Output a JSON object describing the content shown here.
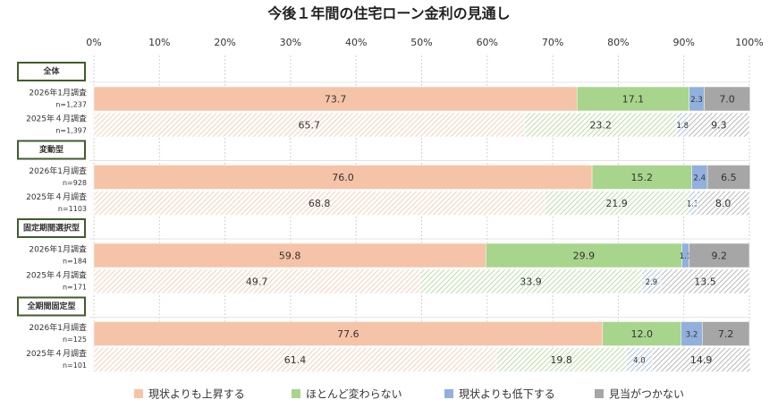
{
  "chart_data": {
    "type": "stacked-bar-horizontal",
    "title": "今後１年間の住宅ローン金利の見通し",
    "xlim": [
      0,
      100
    ],
    "xticks": [
      {
        "value": 0,
        "label": "0%"
      },
      {
        "value": 10,
        "label": "10%"
      },
      {
        "value": 20,
        "label": "20%"
      },
      {
        "value": 30,
        "label": "30%"
      },
      {
        "value": 40,
        "label": "40%"
      },
      {
        "value": 50,
        "label": "50%"
      },
      {
        "value": 60,
        "label": "60%"
      },
      {
        "value": 70,
        "label": "70%"
      },
      {
        "value": 80,
        "label": "80%"
      },
      {
        "value": 90,
        "label": "90%"
      },
      {
        "value": 100,
        "label": "100%"
      }
    ],
    "grid": true,
    "groups": [
      "全体",
      "変動型",
      "固定期間選択型",
      "全期間固定型"
    ],
    "categories": [
      "2026年1月調査",
      "2025年４月調査",
      "2026年1月調査",
      "2025年４月調査",
      "2026年1月調査",
      "2025年４月調査",
      "2026年1月調査",
      "2025年４月調査"
    ],
    "sample_sizes": [
      "n=1,237",
      "n=1,397",
      "n=928",
      "n=1103",
      "n=184",
      "n=171",
      "n=125",
      "n=101"
    ],
    "series": [
      {
        "name": "現状よりも上昇する",
        "color": "#f5c3a7",
        "values": [
          73.7,
          65.7,
          76.0,
          68.8,
          59.8,
          49.7,
          77.6,
          61.4
        ],
        "value_labels": [
          "73.7",
          "65.7",
          "76.0",
          "68.8",
          "59.8",
          "49.7",
          "77.6",
          "61.4"
        ]
      },
      {
        "name": "ほとんど変わらない",
        "color": "#a8d58c",
        "values": [
          17.1,
          23.2,
          15.2,
          21.9,
          29.9,
          33.9,
          12.0,
          19.8
        ],
        "value_labels": [
          "17.1",
          "23.2",
          "15.2",
          "21.9",
          "29.9",
          "33.9",
          "12.0",
          "19.8"
        ]
      },
      {
        "name": "現状よりも低下する",
        "color": "#92b0de",
        "values": [
          2.3,
          1.8,
          2.4,
          1.3,
          1.1,
          2.9,
          3.2,
          4.0
        ],
        "value_labels": [
          "2.3",
          "1.8",
          "2.4",
          "1.3",
          "1.1",
          "2.9",
          "3.2",
          "4.0"
        ]
      },
      {
        "name": "見当がつかない",
        "color": "#a6a6a6",
        "values": [
          7.0,
          9.3,
          6.5,
          8.0,
          9.2,
          13.5,
          7.2,
          14.9
        ],
        "value_labels": [
          "7.0",
          "9.3",
          "6.5",
          "8.0",
          "9.2",
          "13.5",
          "7.2",
          "14.9"
        ]
      }
    ]
  }
}
